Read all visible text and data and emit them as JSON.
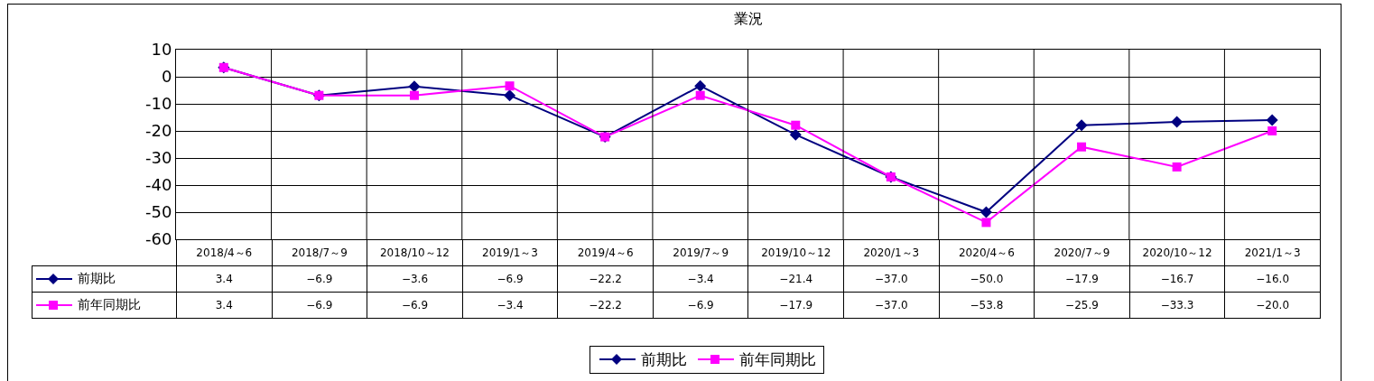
{
  "chart_data": {
    "type": "line",
    "title": "業況",
    "categories": [
      "2018/4～6",
      "2018/7～9",
      "2018/10～12",
      "2019/1～3",
      "2019/4～6",
      "2019/7～9",
      "2019/10～12",
      "2020/1～3",
      "2020/4～6",
      "2020/7～9",
      "2020/10～12",
      "2021/1～3"
    ],
    "series": [
      {
        "name": "前期比",
        "color": "#000080",
        "marker": "diamond",
        "values": [
          3.4,
          -6.9,
          -3.6,
          -6.9,
          -22.2,
          -3.4,
          -21.4,
          -37.0,
          -50.0,
          -17.9,
          -16.7,
          -16.0
        ],
        "value_labels": [
          "3.4",
          "−6.9",
          "−3.6",
          "−6.9",
          "−22.2",
          "−3.4",
          "−21.4",
          "−37.0",
          "−50.0",
          "−17.9",
          "−16.7",
          "−16.0"
        ]
      },
      {
        "name": "前年同期比",
        "color": "#ff00ff",
        "marker": "square",
        "values": [
          3.4,
          -6.9,
          -6.9,
          -3.4,
          -22.2,
          -6.9,
          -17.9,
          -37.0,
          -53.8,
          -25.9,
          -33.3,
          -20.0
        ],
        "value_labels": [
          "3.4",
          "−6.9",
          "−6.9",
          "−3.4",
          "−22.2",
          "−6.9",
          "−17.9",
          "−37.0",
          "−53.8",
          "−25.9",
          "−33.3",
          "−20.0"
        ]
      }
    ],
    "ylim": [
      -60,
      10
    ],
    "yticks": [
      -60,
      -50,
      -40,
      -30,
      -20,
      -10,
      0,
      10
    ],
    "grid": true,
    "legend": "bottom"
  }
}
